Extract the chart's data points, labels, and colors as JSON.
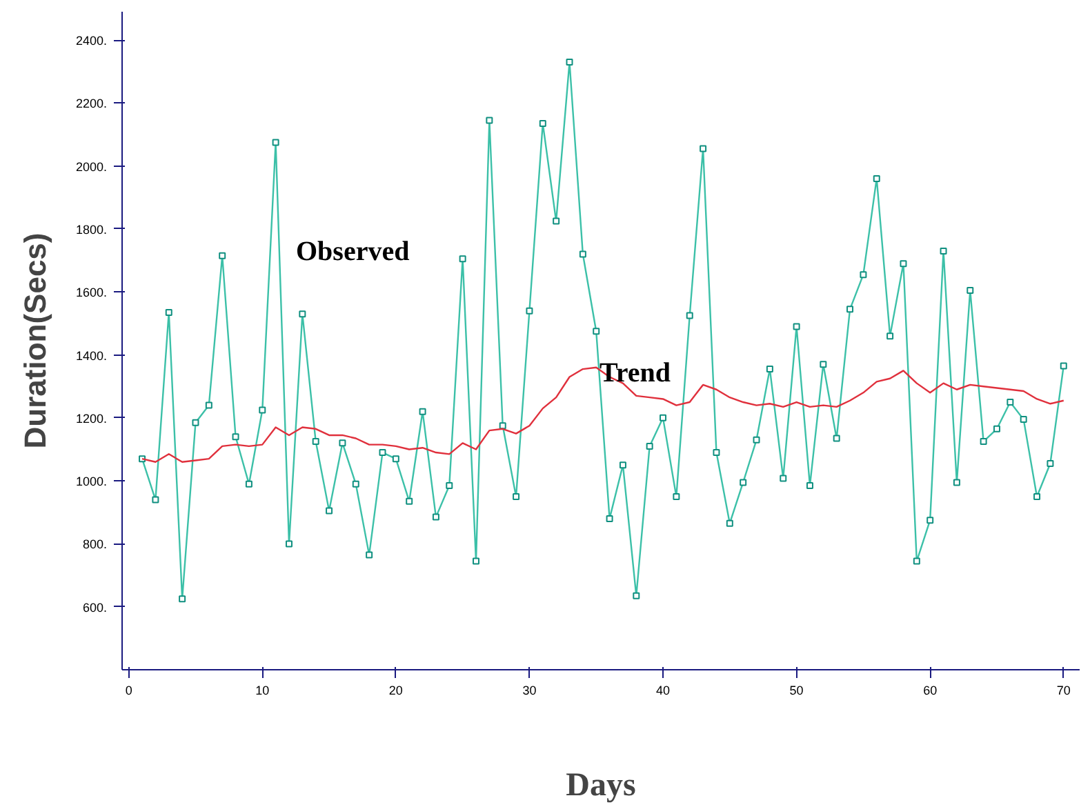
{
  "chart_data": {
    "type": "line",
    "xlabel": "Days",
    "ylabel": "Duration(Secs)",
    "x": [
      1,
      2,
      3,
      4,
      5,
      6,
      7,
      8,
      9,
      10,
      11,
      12,
      13,
      14,
      15,
      16,
      17,
      18,
      19,
      20,
      21,
      22,
      23,
      24,
      25,
      26,
      27,
      28,
      29,
      30,
      31,
      32,
      33,
      34,
      35,
      36,
      37,
      38,
      39,
      40,
      41,
      42,
      43,
      44,
      45,
      46,
      47,
      48,
      49,
      50,
      51,
      52,
      53,
      54,
      55,
      56,
      57,
      58,
      59,
      60,
      61,
      62,
      63,
      64,
      65,
      66,
      67,
      68,
      69,
      70
    ],
    "series": [
      {
        "color": "#3cc0a8",
        "marker": "square",
        "values": [
          1070,
          940,
          1535,
          625,
          1185,
          1240,
          1715,
          1140,
          990,
          1225,
          2075,
          800,
          1530,
          1125,
          905,
          1120,
          990,
          765,
          1090,
          1070,
          935,
          1220,
          885,
          985,
          1705,
          745,
          2145,
          1175,
          950,
          1540,
          2135,
          1825,
          2330,
          1720,
          1475,
          880,
          1050,
          635,
          1110,
          1200,
          950,
          1525,
          2055,
          1090,
          865,
          995,
          1130,
          1355,
          1008,
          1490,
          985,
          1370,
          1135,
          1545,
          1655,
          1960,
          1460,
          1690,
          745,
          875,
          1730,
          995,
          1605,
          1125,
          1165,
          1250,
          1195,
          950,
          1055,
          1365
        ]
      },
      {
        "color": "#e0303c",
        "marker": "none",
        "values": [
          1070,
          1060,
          1085,
          1060,
          1065,
          1070,
          1110,
          1115,
          1110,
          1115,
          1170,
          1145,
          1170,
          1165,
          1145,
          1145,
          1135,
          1115,
          1115,
          1110,
          1100,
          1105,
          1090,
          1085,
          1120,
          1100,
          1160,
          1165,
          1150,
          1175,
          1230,
          1265,
          1330,
          1355,
          1360,
          1330,
          1310,
          1270,
          1265,
          1260,
          1240,
          1250,
          1305,
          1290,
          1265,
          1250,
          1240,
          1245,
          1235,
          1250,
          1235,
          1240,
          1235,
          1255,
          1280,
          1315,
          1325,
          1350,
          1310,
          1280,
          1310,
          1290,
          1305,
          1300,
          1295,
          1290,
          1285,
          1260,
          1245,
          1255
        ]
      }
    ],
    "annotations": [
      "Observed",
      "Trend"
    ],
    "xlim": [
      -0.5,
      71.2
    ],
    "ylim": [
      400,
      2490
    ],
    "xticks": [
      0,
      10,
      20,
      30,
      40,
      50,
      60,
      70
    ],
    "yticks": [
      {
        "value": 600,
        "label": "600."
      },
      {
        "value": 800,
        "label": "800."
      },
      {
        "value": 1000,
        "label": "1000."
      },
      {
        "value": 1200,
        "label": "1200."
      },
      {
        "value": 1400,
        "label": "1400."
      },
      {
        "value": 1600,
        "label": "1600."
      },
      {
        "value": 1800,
        "label": "1800."
      },
      {
        "value": 2000,
        "label": "2000."
      },
      {
        "value": 2200,
        "label": "2200."
      },
      {
        "value": 2400,
        "label": "2400."
      }
    ],
    "grid": false,
    "line_style": "solid"
  }
}
